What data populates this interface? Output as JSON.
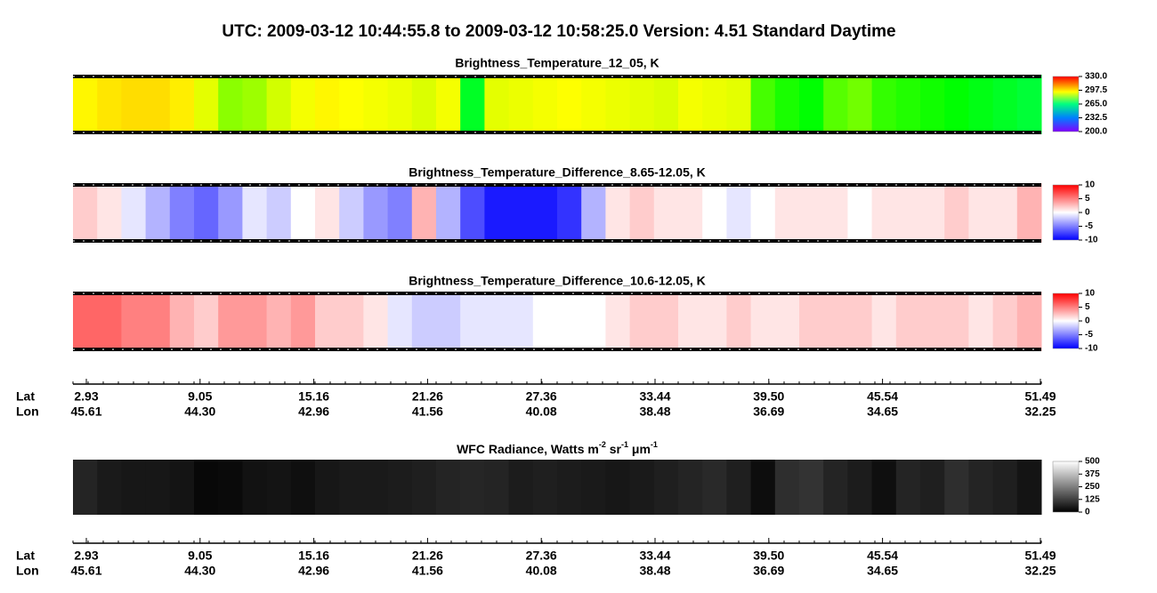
{
  "title": "UTC:  2009-03-12   10:44:55.8  to  2009-03-12   10:58:25.0    Version: 4.51  Standard Daytime",
  "chart_data": [
    {
      "type": "heatmap",
      "title": "Brightness_Temperature_12_05, K",
      "colormap": "rainbow",
      "clim": [
        200,
        330
      ],
      "cticks": [
        {
          "value": 330,
          "label": "330.0"
        },
        {
          "value": 297.5,
          "label": "297.5"
        },
        {
          "value": 265,
          "label": "265.0"
        },
        {
          "value": 232.5,
          "label": "232.5"
        },
        {
          "value": 200,
          "label": "200.0"
        }
      ],
      "values": [
        302,
        304,
        305,
        305,
        303,
        298,
        288,
        290,
        296,
        300,
        302,
        301,
        300,
        299,
        297,
        300,
        268,
        298,
        299,
        300,
        301,
        300,
        299,
        298,
        297,
        300,
        299,
        298,
        280,
        275,
        272,
        282,
        285,
        278,
        276,
        274,
        272,
        270,
        268,
        266
      ]
    },
    {
      "type": "heatmap",
      "title": "Brightness_Temperature_Difference_8.65-12.05, K",
      "colormap": "bwr",
      "clim": [
        -10,
        10
      ],
      "cticks": [
        10,
        5,
        0,
        -5,
        -10
      ],
      "values": [
        2,
        1,
        -1,
        -3,
        -5,
        -6,
        -4,
        -1,
        -2,
        0,
        1,
        -2,
        -4,
        -5,
        3,
        -3,
        -7,
        -9,
        -9,
        -9,
        -8,
        -3,
        1,
        2,
        1,
        1,
        0,
        -1,
        0,
        1,
        1,
        1,
        0,
        1,
        1,
        1,
        2,
        1,
        1,
        3
      ]
    },
    {
      "type": "heatmap",
      "title": "Brightness_Temperature_Difference_10.6-12.05, K",
      "colormap": "bwr",
      "clim": [
        -10,
        10
      ],
      "cticks": [
        10,
        5,
        0,
        -5,
        -10
      ],
      "values": [
        6,
        6,
        5,
        5,
        3,
        2,
        4,
        4,
        3,
        4,
        2,
        2,
        1,
        -1,
        -2,
        -2,
        -1,
        -1,
        -1,
        0,
        0,
        0,
        1,
        2,
        2,
        1,
        1,
        2,
        1,
        1,
        2,
        2,
        2,
        1,
        2,
        2,
        2,
        1,
        2,
        3
      ]
    },
    {
      "type": "heatmap",
      "title": [
        "WFC Radiance, Watts m",
        "-2",
        " sr",
        "-1",
        " μm",
        "-1"
      ],
      "colormap": "gray",
      "clim": [
        0,
        500
      ],
      "cticks": [
        500,
        375,
        250,
        125,
        0
      ],
      "values": [
        70,
        50,
        45,
        45,
        40,
        15,
        20,
        35,
        40,
        30,
        45,
        50,
        50,
        55,
        60,
        70,
        75,
        70,
        55,
        60,
        55,
        50,
        45,
        50,
        60,
        70,
        80,
        60,
        25,
        90,
        100,
        70,
        55,
        30,
        70,
        60,
        90,
        70,
        60,
        40
      ]
    }
  ],
  "xaxis": {
    "row_labels": [
      "Lat",
      "Lon"
    ],
    "lat": [
      2.93,
      9.05,
      15.16,
      21.26,
      27.36,
      33.44,
      {
        "value": 39.5,
        "label": "39.50"
      },
      45.54,
      51.49
    ],
    "lon": [
      45.61,
      {
        "value": 44.3,
        "label": "44.30"
      },
      42.96,
      41.56,
      40.08,
      38.48,
      36.69,
      34.65,
      32.25
    ]
  }
}
